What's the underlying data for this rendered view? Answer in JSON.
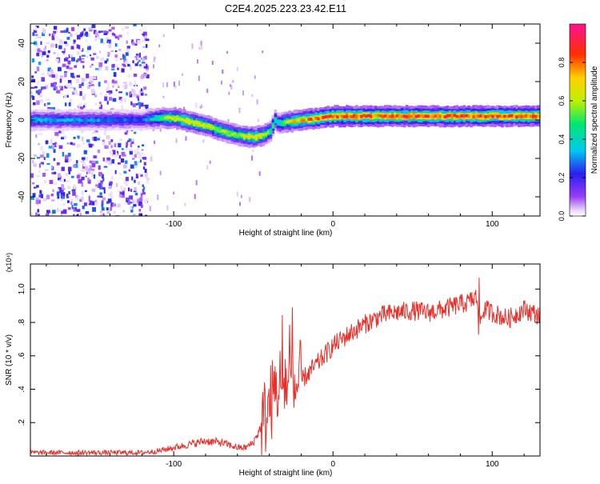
{
  "figure": {
    "title": "C2E4.2025.223.23.42.E11"
  },
  "chart_data": [
    {
      "type": "heatmap",
      "xlabel": "Height of straight line (km)",
      "ylabel": "Frequency (Hz)",
      "xlim": [
        -190,
        130
      ],
      "ylim": [
        -50,
        50
      ],
      "xticks": [
        -100,
        0,
        100
      ],
      "yticks": [
        -40,
        -20,
        0,
        20,
        40
      ],
      "grid": false,
      "colorbar": {
        "label": "Normalized spectral amplitude",
        "range": [
          0,
          1
        ],
        "ticks": [
          0.0,
          0.2,
          0.4,
          0.6,
          0.8
        ],
        "colormap": "rainbow (white-violet-blue-cyan-green-yellow-red-magenta)"
      },
      "ridge": {
        "x": [
          -190,
          -150,
          -120,
          -110,
          -100,
          -90,
          -80,
          -70,
          -60,
          -50,
          -45,
          -40,
          -37,
          -35,
          -30,
          -20,
          -10,
          0,
          20,
          50,
          90,
          130
        ],
        "freq": [
          0,
          0,
          0,
          1,
          1,
          -1,
          -3,
          -6,
          -8,
          -9,
          -8,
          -6,
          0,
          -2,
          -1,
          0,
          1,
          2,
          2,
          2,
          2,
          2
        ],
        "amplitude": [
          0.35,
          0.3,
          0.25,
          0.5,
          0.65,
          0.7,
          0.6,
          0.6,
          0.6,
          0.7,
          0.65,
          0.5,
          0.4,
          0.45,
          0.6,
          0.75,
          0.8,
          0.85,
          0.85,
          0.85,
          0.85,
          0.85
        ]
      },
      "noise_region": {
        "x_from": -190,
        "x_to": -117,
        "freq_range": [
          -50,
          50
        ],
        "amplitude_max": 0.3
      }
    },
    {
      "type": "line",
      "xlabel": "Height of straight line (km)",
      "ylabel": "SNR (10 * v/v)",
      "y_multiplier": "(x10⁴)",
      "xlim": [
        -190,
        130
      ],
      "ylim": [
        0,
        1.15
      ],
      "xticks": [
        -100,
        0,
        100
      ],
      "yticks": [
        0.2,
        0.4,
        0.6,
        0.8,
        1.0
      ],
      "color": "#e8302a",
      "grid": false,
      "series": [
        {
          "x": [
            -190,
            -150,
            -120,
            -110,
            -100,
            -90,
            -80,
            -70,
            -60,
            -55,
            -50,
            -45,
            -40,
            -35,
            -30,
            -25,
            -20,
            -10,
            0,
            10,
            20,
            30,
            40,
            50,
            60,
            70,
            80,
            85,
            90,
            92,
            95,
            100,
            110,
            120,
            130
          ],
          "values": [
            0.02,
            0.02,
            0.02,
            0.03,
            0.05,
            0.07,
            0.09,
            0.08,
            0.05,
            0.05,
            0.08,
            0.18,
            0.3,
            0.42,
            0.45,
            0.4,
            0.45,
            0.55,
            0.66,
            0.73,
            0.79,
            0.84,
            0.86,
            0.87,
            0.86,
            0.88,
            0.91,
            0.92,
            0.95,
            0.8,
            0.88,
            0.86,
            0.82,
            0.88,
            0.84
          ]
        }
      ]
    }
  ]
}
